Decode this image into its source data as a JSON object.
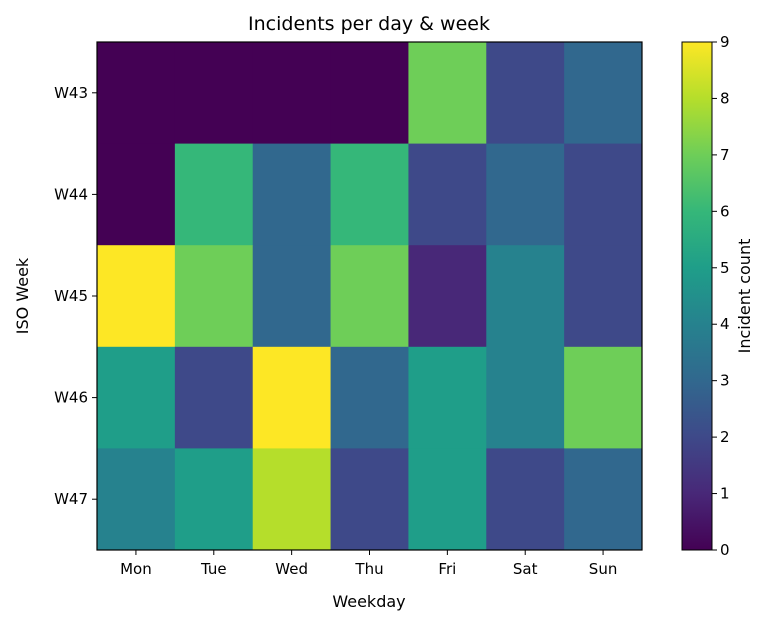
{
  "chart_data": {
    "type": "heatmap",
    "title": "Incidents per day & week",
    "xlabel": "Weekday",
    "ylabel": "ISO Week",
    "x_categories": [
      "Mon",
      "Tue",
      "Wed",
      "Thu",
      "Fri",
      "Sat",
      "Sun"
    ],
    "y_categories": [
      "W43",
      "W44",
      "W45",
      "W46",
      "W47"
    ],
    "values": [
      [
        0,
        0,
        0,
        0,
        7,
        2,
        3
      ],
      [
        0,
        6,
        3,
        6,
        2,
        3,
        2
      ],
      [
        9,
        7,
        3,
        7,
        1,
        4,
        2
      ],
      [
        5,
        2,
        9,
        3,
        5,
        4,
        7
      ],
      [
        4,
        5,
        8,
        2,
        5,
        2,
        3
      ]
    ],
    "colormap": "viridis",
    "colorbar": {
      "label": "Incident count",
      "range": [
        0,
        9
      ],
      "ticks": [
        "0",
        "1",
        "2",
        "3",
        "4",
        "5",
        "6",
        "7",
        "8",
        "9"
      ]
    },
    "grid": false
  }
}
